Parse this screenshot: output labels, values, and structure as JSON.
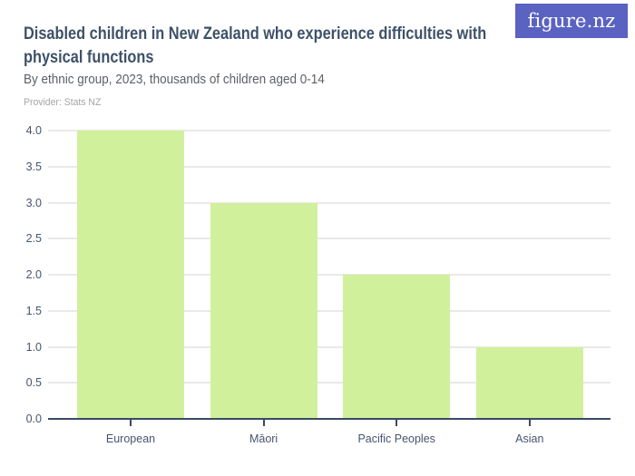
{
  "header": {
    "logo_text": "figure.nz",
    "title_lines": [
      "Disabled children in New Zealand who experience difficulties with",
      "physical functions"
    ],
    "subtitle": "By ethnic group, 2023, thousands of children aged 0-14",
    "provider": "Provider: Stats NZ"
  },
  "colors": {
    "brand_purple": "#5A62C2",
    "bar_green": "#D1F09C",
    "title_text": "#3D5168",
    "subtitle_text": "#5C6066",
    "provider_text": "#A5A5A7",
    "axis_label_text": "#47546E",
    "axis_line": "#3A4A63",
    "gridline": "#E9E9EB",
    "background": "#FFFFFF"
  },
  "chart_data": {
    "type": "bar",
    "title": "Disabled children in New Zealand who experience difficulties with physical functions",
    "subtitle": "By ethnic group, 2023, thousands of children aged 0-14",
    "provider": "Provider: Stats NZ",
    "categories": [
      "European",
      "Māori",
      "Pacific Peoples",
      "Asian"
    ],
    "values": [
      4.0,
      3.0,
      2.0,
      1.0
    ],
    "xlabel": "",
    "ylabel": "",
    "ylim": [
      0,
      4
    ],
    "ytick_step": 0.5,
    "ytick_labels": [
      "0.0",
      "0.5",
      "1.0",
      "1.5",
      "2.0",
      "2.5",
      "3.0",
      "3.5",
      "4.0"
    ],
    "grid": true,
    "legend": false
  }
}
